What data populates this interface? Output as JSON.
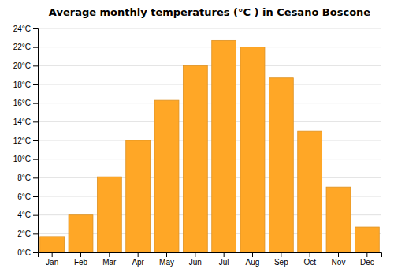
{
  "chart_data": {
    "type": "bar",
    "title": "Average monthly temperatures (°C ) in Cesano Boscone",
    "categories": [
      "Jan",
      "Feb",
      "Mar",
      "Apr",
      "May",
      "Jun",
      "Jul",
      "Aug",
      "Sep",
      "Oct",
      "Nov",
      "Dec"
    ],
    "values": [
      1.7,
      4.0,
      8.1,
      12.0,
      16.3,
      20.0,
      22.7,
      22.0,
      18.7,
      13.0,
      7.0,
      2.7
    ],
    "color": "#FFA726",
    "ylim": [
      0,
      24
    ],
    "yticks": [
      {
        "value": 0,
        "label": "0°C"
      },
      {
        "value": 2,
        "label": "2°C"
      },
      {
        "value": 4,
        "label": "4°C"
      },
      {
        "value": 6,
        "label": "6°C"
      },
      {
        "value": 8,
        "label": "8°C"
      },
      {
        "value": 10,
        "label": "10°C"
      },
      {
        "value": 12,
        "label": "12°C"
      },
      {
        "value": 14,
        "label": "14°C"
      },
      {
        "value": 16,
        "label": "16°C"
      },
      {
        "value": 18,
        "label": "18°C"
      },
      {
        "value": 20,
        "label": "20°C"
      },
      {
        "value": 22,
        "label": "22°C"
      },
      {
        "value": 24,
        "label": "24°C"
      }
    ],
    "grid": true
  }
}
